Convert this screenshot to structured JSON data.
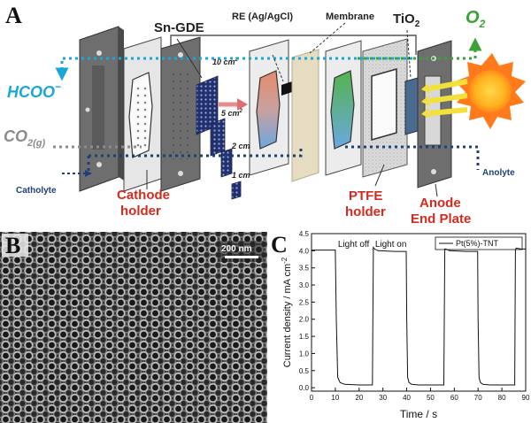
{
  "panels": {
    "a": "A",
    "b": "B",
    "c": "C"
  },
  "diagram": {
    "sn_gde": "Sn-GDE",
    "reference_electrode": "RE (Ag/AgCl)",
    "membrane": "Membrane",
    "tio2_main": "TiO",
    "tio2_sub": "2",
    "o2_main": "O",
    "o2_sub": "2",
    "hcoo": "HCOO",
    "hcoo_sup": "−",
    "co2_main": "CO",
    "co2_sub": "2(g)",
    "catholyte": "Catholyte",
    "anolyte": "Anolyte",
    "cathode_holder_1": "Cathode",
    "cathode_holder_2": "holder",
    "ptfe_holder_1": "PTFE",
    "ptfe_holder_2": "holder",
    "anode_plate_1": "Anode",
    "anode_plate_2": "End Plate",
    "area_10": "10 cm",
    "area_5": "5 cm",
    "area_2": "2 cm",
    "area_1": "1 cm",
    "area_sup": "2"
  },
  "sem": {
    "scale_bar_label": "200 nm"
  },
  "colors": {
    "hcoo_blue": "#1aa6d9",
    "co2_grey": "#8c8c8c",
    "o2_green": "#3aa335",
    "red_label": "#d42a1e",
    "dark_blue_flow": "#1f3f7a"
  },
  "chart_data": {
    "type": "line",
    "xlabel": "Time / s",
    "ylabel": "Current density / mA cm",
    "ylabel_sup": "-2",
    "xlim": [
      0,
      90
    ],
    "ylim": [
      -0.1,
      4.5
    ],
    "xticks": [
      "0",
      "10",
      "20",
      "30",
      "40",
      "50",
      "60",
      "70",
      "80",
      "90"
    ],
    "yticks": [
      "0.0",
      "0.5",
      "1.0",
      "1.5",
      "2.0",
      "2.5",
      "3.0",
      "3.5",
      "4.0",
      "4.5"
    ],
    "legend": "Pt(5%)-TNT",
    "legend_position": "top-right",
    "annotations": [
      "Light off",
      "Light on"
    ],
    "series": [
      {
        "name": "Pt(5%)-TNT",
        "x": [
          0,
          10.0,
          10.4,
          11.0,
          12.0,
          14,
          20,
          25.6,
          26.0,
          26.5,
          28,
          35,
          39.8,
          40.0,
          40.4,
          41,
          42,
          45,
          50,
          55.6,
          56.0,
          56.5,
          58,
          65,
          69.8,
          70.0,
          70.4,
          71,
          72,
          75,
          80,
          85.4,
          85.7,
          86,
          88,
          90
        ],
        "y": [
          4.02,
          4.02,
          2.0,
          0.3,
          0.15,
          0.1,
          0.08,
          0.08,
          4.1,
          4.05,
          4.0,
          3.98,
          3.98,
          2.0,
          0.3,
          0.15,
          0.1,
          0.08,
          0.08,
          0.08,
          4.05,
          4.05,
          4.0,
          3.98,
          3.98,
          2.0,
          0.3,
          0.15,
          0.1,
          0.08,
          0.08,
          0.08,
          4.02,
          4.08,
          4.05,
          4.05
        ]
      }
    ]
  }
}
